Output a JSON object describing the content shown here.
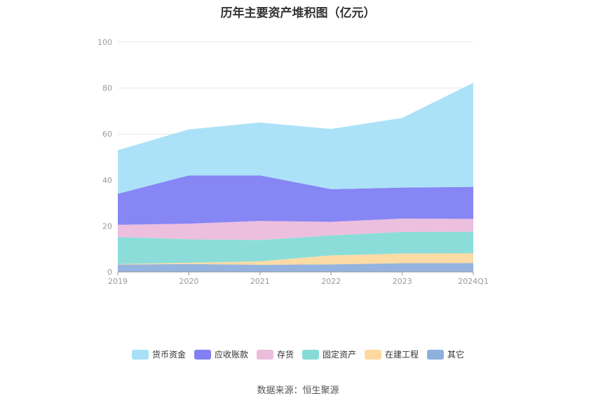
{
  "title": "历年主要资产堆积图（亿元）",
  "source": "数据来源：恒生聚源",
  "chart_data": {
    "type": "area",
    "stacked": true,
    "categories": [
      "2019",
      "2020",
      "2021",
      "2022",
      "2023",
      "2024Q1"
    ],
    "ylim": [
      0,
      100
    ],
    "yticks": [
      0,
      20,
      40,
      60,
      80,
      100
    ],
    "grid": true,
    "legend_position": "bottom",
    "series": [
      {
        "name": "其它",
        "color": "#8eb0dd",
        "values": [
          3.2,
          3.4,
          3.1,
          3.3,
          3.8,
          3.9
        ]
      },
      {
        "name": "在建工程",
        "color": "#fdd9a0",
        "values": [
          0.2,
          0.6,
          1.5,
          3.9,
          4.2,
          4.2
        ]
      },
      {
        "name": "固定资产",
        "color": "#86dbd8",
        "values": [
          11.8,
          10.2,
          9.3,
          8.7,
          9.4,
          9.4
        ]
      },
      {
        "name": "存货",
        "color": "#ecbcdc",
        "values": [
          5.3,
          6.8,
          8.3,
          5.9,
          5.8,
          5.6
        ]
      },
      {
        "name": "应收账款",
        "color": "#8080f4",
        "values": [
          13.5,
          21.0,
          19.8,
          14.2,
          13.5,
          13.9
        ]
      },
      {
        "name": "货币资金",
        "color": "#a8e0f8",
        "values": [
          19.0,
          20.0,
          23.0,
          26.2,
          30.3,
          45.3
        ]
      }
    ],
    "legend_order": [
      "货币资金",
      "应收账款",
      "存货",
      "固定资产",
      "在建工程",
      "其它"
    ]
  }
}
